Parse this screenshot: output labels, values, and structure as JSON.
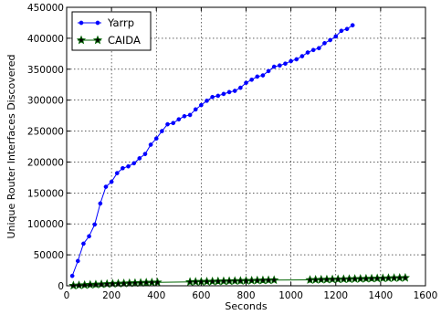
{
  "chart_data": {
    "type": "line",
    "title": "",
    "xlabel": "Seconds",
    "ylabel": "Unique Router Interfaces Discovered",
    "xlim": [
      0,
      1600
    ],
    "ylim": [
      0,
      450000
    ],
    "xticks": [
      0,
      200,
      400,
      600,
      800,
      1000,
      1200,
      1400,
      1600
    ],
    "yticks": [
      0,
      50000,
      100000,
      150000,
      200000,
      250000,
      300000,
      350000,
      400000,
      450000
    ],
    "grid": true,
    "legend_position": "top-left",
    "series": [
      {
        "name": "Yarrp",
        "color": "#0000ff",
        "marker": "circle",
        "points": [
          [
            25,
            16000
          ],
          [
            50,
            40000
          ],
          [
            75,
            68000
          ],
          [
            100,
            80000
          ],
          [
            125,
            99000
          ],
          [
            150,
            133000
          ],
          [
            175,
            160000
          ],
          [
            200,
            168000
          ],
          [
            225,
            182000
          ],
          [
            250,
            190000
          ],
          [
            275,
            193000
          ],
          [
            300,
            198000
          ],
          [
            325,
            206000
          ],
          [
            350,
            213000
          ],
          [
            375,
            228000
          ],
          [
            400,
            238000
          ],
          [
            425,
            250000
          ],
          [
            450,
            261000
          ],
          [
            475,
            263000
          ],
          [
            500,
            269000
          ],
          [
            525,
            274000
          ],
          [
            550,
            276000
          ],
          [
            575,
            285000
          ],
          [
            600,
            292000
          ],
          [
            625,
            299000
          ],
          [
            650,
            305000
          ],
          [
            675,
            307000
          ],
          [
            700,
            310000
          ],
          [
            725,
            313000
          ],
          [
            750,
            315000
          ],
          [
            775,
            320000
          ],
          [
            800,
            328000
          ],
          [
            825,
            333000
          ],
          [
            850,
            338000
          ],
          [
            875,
            340000
          ],
          [
            900,
            347000
          ],
          [
            925,
            354000
          ],
          [
            950,
            356000
          ],
          [
            975,
            359000
          ],
          [
            1000,
            363000
          ],
          [
            1025,
            366000
          ],
          [
            1050,
            371000
          ],
          [
            1075,
            377000
          ],
          [
            1100,
            381000
          ],
          [
            1125,
            384000
          ],
          [
            1150,
            392000
          ],
          [
            1175,
            397000
          ],
          [
            1200,
            403000
          ],
          [
            1225,
            412000
          ],
          [
            1250,
            415000
          ],
          [
            1275,
            421000
          ]
        ]
      },
      {
        "name": "CAIDA",
        "color": "#006400",
        "marker": "star",
        "points": [
          [
            30,
            300
          ],
          [
            55,
            800
          ],
          [
            80,
            1200
          ],
          [
            105,
            1700
          ],
          [
            130,
            2100
          ],
          [
            155,
            2500
          ],
          [
            180,
            2900
          ],
          [
            205,
            3300
          ],
          [
            230,
            3600
          ],
          [
            255,
            3900
          ],
          [
            280,
            4200
          ],
          [
            305,
            4500
          ],
          [
            330,
            4800
          ],
          [
            355,
            5100
          ],
          [
            380,
            5400
          ],
          [
            405,
            5600
          ],
          [
            550,
            6200
          ],
          [
            575,
            6400
          ],
          [
            600,
            6600
          ],
          [
            625,
            6800
          ],
          [
            650,
            7000
          ],
          [
            675,
            7200
          ],
          [
            700,
            7400
          ],
          [
            725,
            7600
          ],
          [
            750,
            7800
          ],
          [
            775,
            8000
          ],
          [
            800,
            8200
          ],
          [
            825,
            8400
          ],
          [
            850,
            8600
          ],
          [
            875,
            8800
          ],
          [
            900,
            9000
          ],
          [
            925,
            9200
          ],
          [
            1085,
            9500
          ],
          [
            1110,
            9700
          ],
          [
            1135,
            9900
          ],
          [
            1160,
            10100
          ],
          [
            1185,
            10300
          ],
          [
            1210,
            10500
          ],
          [
            1235,
            10700
          ],
          [
            1260,
            10900
          ],
          [
            1285,
            11100
          ],
          [
            1310,
            11300
          ],
          [
            1335,
            11500
          ],
          [
            1360,
            11700
          ],
          [
            1385,
            11900
          ],
          [
            1410,
            12100
          ],
          [
            1435,
            12300
          ],
          [
            1460,
            12500
          ],
          [
            1485,
            12700
          ],
          [
            1510,
            12900
          ]
        ]
      }
    ]
  }
}
